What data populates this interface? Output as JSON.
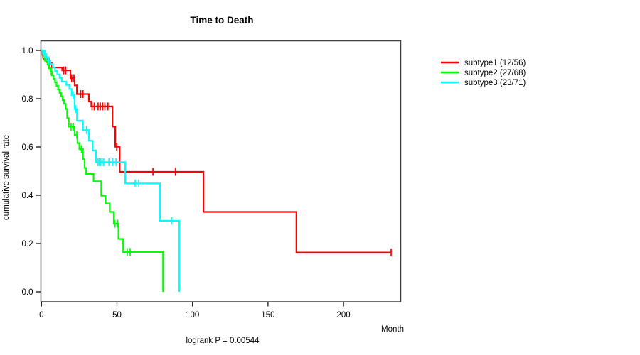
{
  "title": "Time to Death",
  "x_axis_label": "Month",
  "y_axis_label": "cumulative survival rate",
  "annotation": "logrank P = 0.00544",
  "colors": {
    "subtype1": "#ff0000",
    "subtype2": "#00ff00",
    "subtype3": "#00ffff",
    "axis_box": "#404040",
    "tick": "#000000",
    "text": "#000000",
    "background": "#ffffff"
  },
  "legend": [
    {
      "id": "subtype1",
      "label": "subtype1 (12/56)",
      "color": "#ff0000"
    },
    {
      "id": "subtype2",
      "label": "subtype2 (27/68)",
      "color": "#00ff00"
    },
    {
      "id": "subtype3",
      "label": "subtype3 (23/71)",
      "color": "#00ffff"
    }
  ],
  "chart_data": {
    "type": "line",
    "subtype": "kaplan-meier-step-curves",
    "title": "Time to Death",
    "xlabel": "Month",
    "ylabel": "cumulative survival rate",
    "xlim": [
      0,
      238
    ],
    "ylim": [
      0.0,
      1.0
    ],
    "x_ticks": [
      0,
      50,
      100,
      150,
      200
    ],
    "y_ticks": [
      0.0,
      0.2,
      0.4,
      0.6,
      0.8,
      1.0
    ],
    "grid": false,
    "legend_position": "right-outside",
    "annotation": "logrank P = 0.00544",
    "series": [
      {
        "id": "subtype1",
        "name": "subtype1 (12/56)",
        "events": 12,
        "n": 56,
        "color": "#ff0000",
        "steps": [
          [
            0,
            1.0
          ],
          [
            0.7,
            0.982
          ],
          [
            1.5,
            0.964
          ],
          [
            5,
            0.947
          ],
          [
            7,
            0.929
          ],
          [
            13.7,
            0.917
          ],
          [
            19.2,
            0.885
          ],
          [
            22,
            0.855
          ],
          [
            23.5,
            0.819
          ],
          [
            31.4,
            0.788
          ],
          [
            33,
            0.768
          ],
          [
            47,
            0.684
          ],
          [
            48.8,
            0.601
          ],
          [
            51.8,
            0.497
          ],
          [
            107.2,
            0.331
          ],
          [
            168.8,
            0.163
          ]
        ],
        "end_time": 231.5,
        "censor_times": [
          1,
          3,
          14.8,
          16,
          20,
          21.5,
          26,
          27.5,
          33.5,
          35,
          37.5,
          39,
          40.5,
          42,
          44,
          49.8,
          73.8,
          88.7,
          231.5
        ]
      },
      {
        "id": "subtype2",
        "name": "subtype2 (27/68)",
        "events": 27,
        "n": 68,
        "color": "#00ff00",
        "steps": [
          [
            0,
            1.0
          ],
          [
            0.8,
            0.985
          ],
          [
            1.6,
            0.971
          ],
          [
            2.8,
            0.956
          ],
          [
            4,
            0.941
          ],
          [
            5,
            0.926
          ],
          [
            6,
            0.912
          ],
          [
            7,
            0.897
          ],
          [
            8,
            0.882
          ],
          [
            9,
            0.868
          ],
          [
            10,
            0.853
          ],
          [
            11,
            0.838
          ],
          [
            12,
            0.824
          ],
          [
            13,
            0.809
          ],
          [
            14,
            0.794
          ],
          [
            15,
            0.779
          ],
          [
            16,
            0.757
          ],
          [
            17,
            0.72
          ],
          [
            18.1,
            0.684
          ],
          [
            22,
            0.65
          ],
          [
            23.8,
            0.616
          ],
          [
            25.1,
            0.591
          ],
          [
            27.5,
            0.55
          ],
          [
            28.6,
            0.513
          ],
          [
            29.6,
            0.488
          ],
          [
            34.5,
            0.458
          ],
          [
            39.6,
            0.398
          ],
          [
            42.4,
            0.366
          ],
          [
            45.2,
            0.331
          ],
          [
            47.9,
            0.282
          ],
          [
            51,
            0.219
          ],
          [
            54.1,
            0.165
          ],
          [
            80.5,
            0.0
          ]
        ],
        "end_time": 80.5,
        "censor_times": [
          2,
          4.5,
          6.5,
          19.6,
          21.2,
          23.4,
          26.5,
          48.7,
          50.5,
          56.8,
          58.7
        ]
      },
      {
        "id": "subtype3",
        "name": "subtype3 (23/71)",
        "events": 23,
        "n": 71,
        "color": "#00ffff",
        "steps": [
          [
            0,
            1.0
          ],
          [
            1.2,
            0.986
          ],
          [
            2.8,
            0.972
          ],
          [
            4.5,
            0.958
          ],
          [
            6,
            0.944
          ],
          [
            7.5,
            0.93
          ],
          [
            9,
            0.915
          ],
          [
            10.5,
            0.901
          ],
          [
            12,
            0.886
          ],
          [
            13.5,
            0.871
          ],
          [
            16.5,
            0.857
          ],
          [
            18.5,
            0.84
          ],
          [
            20,
            0.815
          ],
          [
            22,
            0.757
          ],
          [
            23.5,
            0.709
          ],
          [
            27.5,
            0.67
          ],
          [
            31.4,
            0.626
          ],
          [
            33.8,
            0.586
          ],
          [
            36.1,
            0.537
          ],
          [
            55.4,
            0.449
          ],
          [
            78.5,
            0.294
          ],
          [
            91.2,
            0.0
          ]
        ],
        "end_time": 91.2,
        "censor_times": [
          1.8,
          2.4,
          3.4,
          5,
          21,
          22.6,
          29.8,
          37.5,
          38.3,
          39.2,
          40.2,
          41.2,
          44.7,
          47.1,
          49.4,
          62,
          64.4,
          86.3
        ]
      }
    ]
  }
}
